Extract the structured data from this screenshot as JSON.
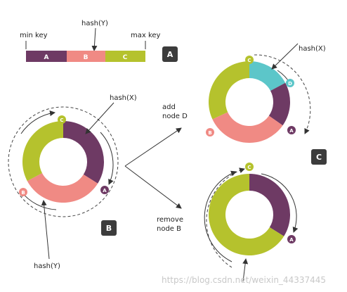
{
  "colors": {
    "A": "#6e3a64",
    "B": "#f08a84",
    "C": "#b5c22d",
    "D": "#5cc6c9",
    "arrow": "#333333",
    "box": "#3c3c3c",
    "watermark": "#c8c8c8"
  },
  "linear": {
    "min_key": "min key",
    "max_key": "max key",
    "hash_y": "hash(Y)",
    "segments": [
      "A",
      "B",
      "C"
    ]
  },
  "panels": {
    "a": "A",
    "b": "B",
    "c": "C"
  },
  "ring_b": {
    "hash_x": "hash(X)",
    "hash_y": "hash(Y)",
    "nodes": [
      "C",
      "A",
      "B"
    ]
  },
  "ring_add": {
    "hash_x": "hash(X)",
    "nodes": [
      "C",
      "D",
      "A",
      "B"
    ]
  },
  "ring_remove": {
    "nodes": [
      "C",
      "A"
    ]
  },
  "transitions": {
    "add": [
      "add",
      "node D"
    ],
    "remove": [
      "remove",
      "node B"
    ]
  },
  "watermark": "https://blog.csdn.net/weixin_44337445"
}
